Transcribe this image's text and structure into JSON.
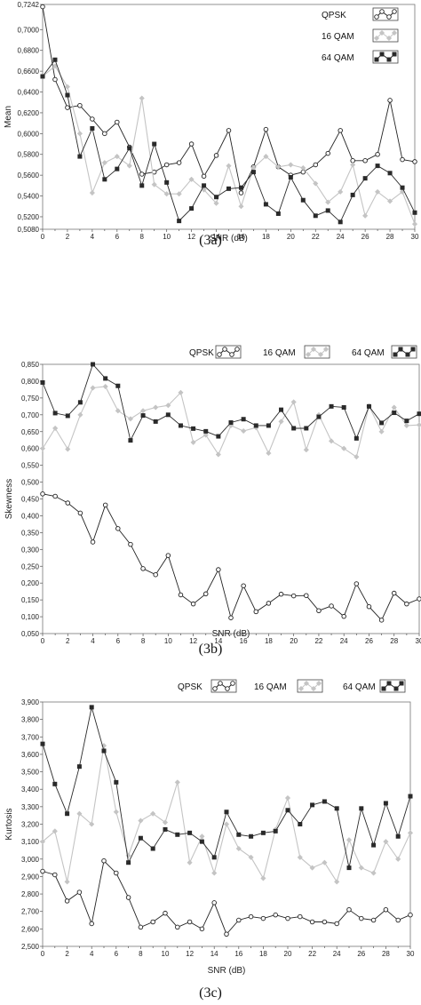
{
  "colors": {
    "QPSK": "#222222",
    "16 QAM": "#c4c4c4",
    "64 QAM": "#2a2a2a"
  },
  "chart_data": [
    {
      "type": "line",
      "caption": "(3a)",
      "xlabel": "SNR (dB)",
      "ylabel": "Mean",
      "xlim": [
        0,
        30
      ],
      "ylim": [
        0.508,
        0.7242
      ],
      "xticks": [
        0,
        2,
        4,
        6,
        8,
        10,
        12,
        14,
        16,
        18,
        20,
        22,
        24,
        26,
        28,
        30
      ],
      "yticks": [
        "0,5080",
        "0,5200",
        "0,5400",
        "0,5600",
        "0,5800",
        "0,6000",
        "0,6200",
        "0,6400",
        "0,6600",
        "0,6800",
        "0,7000",
        "0,7242"
      ],
      "ytick_values": [
        0.508,
        0.52,
        0.54,
        0.56,
        0.58,
        0.6,
        0.62,
        0.64,
        0.66,
        0.68,
        0.7,
        0.7242
      ],
      "legend_position": "top-right",
      "legend_layout": "vertical",
      "x": [
        0,
        1,
        2,
        3,
        4,
        5,
        6,
        7,
        8,
        9,
        10,
        11,
        12,
        13,
        14,
        15,
        16,
        17,
        18,
        19,
        20,
        21,
        22,
        23,
        24,
        25,
        26,
        27,
        28,
        29,
        30
      ],
      "series": [
        {
          "name": "QPSK",
          "marker": "circle",
          "values": [
            0.722,
            0.652,
            0.625,
            0.627,
            0.614,
            0.6,
            0.611,
            0.587,
            0.561,
            0.563,
            0.57,
            0.572,
            0.59,
            0.559,
            0.579,
            0.603,
            0.543,
            0.568,
            0.604,
            0.568,
            0.56,
            0.563,
            0.57,
            0.581,
            0.603,
            0.574,
            0.574,
            0.58,
            0.632,
            0.575,
            0.573
          ]
        },
        {
          "name": "16 QAM",
          "marker": "diamond",
          "values": [
            0.655,
            0.665,
            0.645,
            0.6,
            0.543,
            0.572,
            0.578,
            0.569,
            0.634,
            0.551,
            0.542,
            0.542,
            0.556,
            0.546,
            0.533,
            0.569,
            0.53,
            0.567,
            0.578,
            0.568,
            0.57,
            0.567,
            0.552,
            0.534,
            0.544,
            0.57,
            0.521,
            0.544,
            0.535,
            0.544,
            0.513
          ]
        },
        {
          "name": "64 QAM",
          "marker": "square",
          "values": [
            0.655,
            0.671,
            0.637,
            0.578,
            0.605,
            0.556,
            0.566,
            0.586,
            0.55,
            0.59,
            0.553,
            0.516,
            0.528,
            0.55,
            0.539,
            0.547,
            0.548,
            0.563,
            0.532,
            0.523,
            0.558,
            0.536,
            0.521,
            0.526,
            0.515,
            0.541,
            0.557,
            0.569,
            0.562,
            0.548,
            0.524
          ]
        }
      ]
    },
    {
      "type": "line",
      "caption": "(3b)",
      "xlabel": "SNR (dB)",
      "ylabel": "Skewness",
      "xlim": [
        0,
        30
      ],
      "ylim": [
        0.05,
        0.85
      ],
      "xticks": [
        0,
        2,
        4,
        6,
        8,
        10,
        12,
        14,
        16,
        18,
        20,
        22,
        24,
        26,
        28,
        30
      ],
      "yticks": [
        "0,050",
        "0,100",
        "0,150",
        "0,200",
        "0,250",
        "0,300",
        "0,350",
        "0,400",
        "0,450",
        "0,500",
        "0,550",
        "0,600",
        "0,650",
        "0,700",
        "0,750",
        "0,800",
        "0,850"
      ],
      "ytick_values": [
        0.05,
        0.1,
        0.15,
        0.2,
        0.25,
        0.3,
        0.35,
        0.4,
        0.45,
        0.5,
        0.55,
        0.6,
        0.65,
        0.7,
        0.75,
        0.8,
        0.85
      ],
      "legend_position": "top",
      "legend_layout": "horizontal",
      "x": [
        0,
        1,
        2,
        3,
        4,
        5,
        6,
        7,
        8,
        9,
        10,
        11,
        12,
        13,
        14,
        15,
        16,
        17,
        18,
        19,
        20,
        21,
        22,
        23,
        24,
        25,
        26,
        27,
        28,
        29,
        30
      ],
      "series": [
        {
          "name": "QPSK",
          "marker": "circle",
          "values": [
            0.465,
            0.458,
            0.438,
            0.408,
            0.322,
            0.432,
            0.362,
            0.315,
            0.243,
            0.225,
            0.282,
            0.165,
            0.138,
            0.168,
            0.24,
            0.097,
            0.192,
            0.115,
            0.14,
            0.167,
            0.162,
            0.163,
            0.118,
            0.132,
            0.101,
            0.198,
            0.13,
            0.09,
            0.17,
            0.138,
            0.153
          ]
        },
        {
          "name": "16 QAM",
          "marker": "diamond",
          "values": [
            0.6,
            0.66,
            0.598,
            0.7,
            0.78,
            0.784,
            0.712,
            0.688,
            0.712,
            0.722,
            0.728,
            0.766,
            0.618,
            0.64,
            0.582,
            0.668,
            0.652,
            0.662,
            0.586,
            0.68,
            0.738,
            0.596,
            0.7,
            0.622,
            0.6,
            0.575,
            0.726,
            0.65,
            0.722,
            0.668,
            0.67
          ]
        },
        {
          "name": "64 QAM",
          "marker": "square",
          "values": [
            0.796,
            0.705,
            0.697,
            0.737,
            0.85,
            0.808,
            0.786,
            0.624,
            0.698,
            0.68,
            0.7,
            0.668,
            0.659,
            0.651,
            0.636,
            0.677,
            0.687,
            0.668,
            0.668,
            0.715,
            0.66,
            0.66,
            0.694,
            0.725,
            0.722,
            0.63,
            0.725,
            0.676,
            0.706,
            0.682,
            0.703
          ]
        }
      ]
    },
    {
      "type": "line",
      "caption": "(3c)",
      "xlabel": "SNR (dB)",
      "ylabel": "Kurtosis",
      "xlim": [
        0,
        30
      ],
      "ylim": [
        2.5,
        3.9
      ],
      "xticks": [
        0,
        2,
        4,
        6,
        8,
        10,
        12,
        14,
        16,
        18,
        20,
        22,
        24,
        26,
        28,
        30
      ],
      "yticks": [
        "2,500",
        "2,600",
        "2,700",
        "2,800",
        "2,900",
        "3,000",
        "3,100",
        "3,200",
        "3,300",
        "3,400",
        "3,500",
        "3,600",
        "3,700",
        "3,800",
        "3,900"
      ],
      "ytick_values": [
        2.5,
        2.6,
        2.7,
        2.8,
        2.9,
        3.0,
        3.1,
        3.2,
        3.3,
        3.4,
        3.5,
        3.6,
        3.7,
        3.8,
        3.9
      ],
      "legend_position": "top",
      "legend_layout": "horizontal",
      "x": [
        0,
        1,
        2,
        3,
        4,
        5,
        6,
        7,
        8,
        9,
        10,
        11,
        12,
        13,
        14,
        15,
        16,
        17,
        18,
        19,
        20,
        21,
        22,
        23,
        24,
        25,
        26,
        27,
        28,
        29,
        30
      ],
      "series": [
        {
          "name": "QPSK",
          "marker": "circle",
          "values": [
            2.93,
            2.91,
            2.76,
            2.81,
            2.63,
            2.99,
            2.92,
            2.78,
            2.61,
            2.64,
            2.69,
            2.61,
            2.64,
            2.6,
            2.75,
            2.57,
            2.65,
            2.67,
            2.66,
            2.68,
            2.66,
            2.67,
            2.64,
            2.64,
            2.63,
            2.71,
            2.66,
            2.65,
            2.71,
            2.65,
            2.68
          ]
        },
        {
          "name": "16 QAM",
          "marker": "diamond",
          "values": [
            3.1,
            3.16,
            2.87,
            3.26,
            3.2,
            3.65,
            3.27,
            3.02,
            3.22,
            3.26,
            3.21,
            3.44,
            2.98,
            3.13,
            2.92,
            3.2,
            3.06,
            3.01,
            2.89,
            3.17,
            3.35,
            3.01,
            2.95,
            2.98,
            2.87,
            3.11,
            2.95,
            2.92,
            3.1,
            3.0,
            3.15
          ]
        },
        {
          "name": "64 QAM",
          "marker": "square",
          "values": [
            3.66,
            3.43,
            3.26,
            3.53,
            3.87,
            3.62,
            3.44,
            2.98,
            3.12,
            3.06,
            3.17,
            3.14,
            3.15,
            3.1,
            3.01,
            3.27,
            3.14,
            3.13,
            3.15,
            3.16,
            3.28,
            3.2,
            3.31,
            3.33,
            3.29,
            2.95,
            3.29,
            3.08,
            3.32,
            3.13,
            3.36
          ]
        }
      ]
    }
  ]
}
